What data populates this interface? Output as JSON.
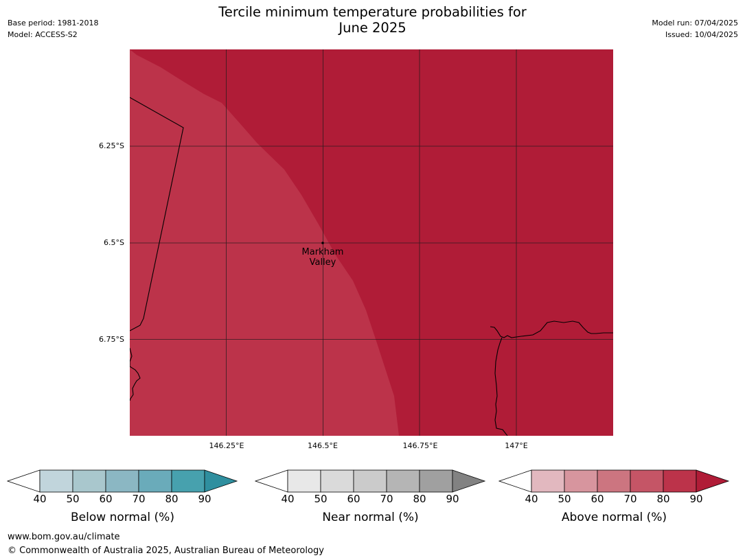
{
  "header": {
    "title_line1": "Tercile minimum temperature probabilities for",
    "title_line2": "June 2025",
    "base_period": "Base period: 1981-2018",
    "model": "Model: ACCESS-S2",
    "model_run": "Model run: 07/04/2025",
    "issued": "Issued: 10/04/2025"
  },
  "map": {
    "lat_labels": [
      "6.25°S",
      "6.5°S",
      "6.75°S"
    ],
    "lon_labels": [
      "146.25°E",
      "146.5°E",
      "146.75°E",
      "147°E"
    ],
    "place": {
      "line1": "Markham",
      "line2": "Valley"
    },
    "region_colors": {
      "above_90": "#b01c37",
      "above_80": "#bc334a",
      "coast": "#000000"
    },
    "region_categories": {
      "west": "Above normal 80-90%",
      "east": "Above normal >90%"
    }
  },
  "colorbars": [
    {
      "title": "Below normal (%)",
      "ticks": [
        "40",
        "50",
        "60",
        "70",
        "80",
        "90"
      ],
      "colors": [
        "#ffffff",
        "#c1d5dc",
        "#a9c7cd",
        "#8bb7c3",
        "#6aabba",
        "#47a1ae",
        "#2f8f9f"
      ]
    },
    {
      "title": "Near normal (%)",
      "ticks": [
        "40",
        "50",
        "60",
        "70",
        "80",
        "90"
      ],
      "colors": [
        "#ffffff",
        "#e8e8e8",
        "#dadada",
        "#cbcbcb",
        "#b5b5b5",
        "#a0a0a0",
        "#828282"
      ]
    },
    {
      "title": "Above normal (%)",
      "ticks": [
        "40",
        "50",
        "60",
        "70",
        "80",
        "90"
      ],
      "colors": [
        "#ffffff",
        "#e2b8bf",
        "#d7959e",
        "#cc7580",
        "#c55566",
        "#bc334a",
        "#b01c37"
      ]
    }
  ],
  "footer": {
    "url": "www.bom.gov.au/climate",
    "copyright": "© Commonwealth of Australia 2025, Australian Bureau of Meteorology"
  }
}
